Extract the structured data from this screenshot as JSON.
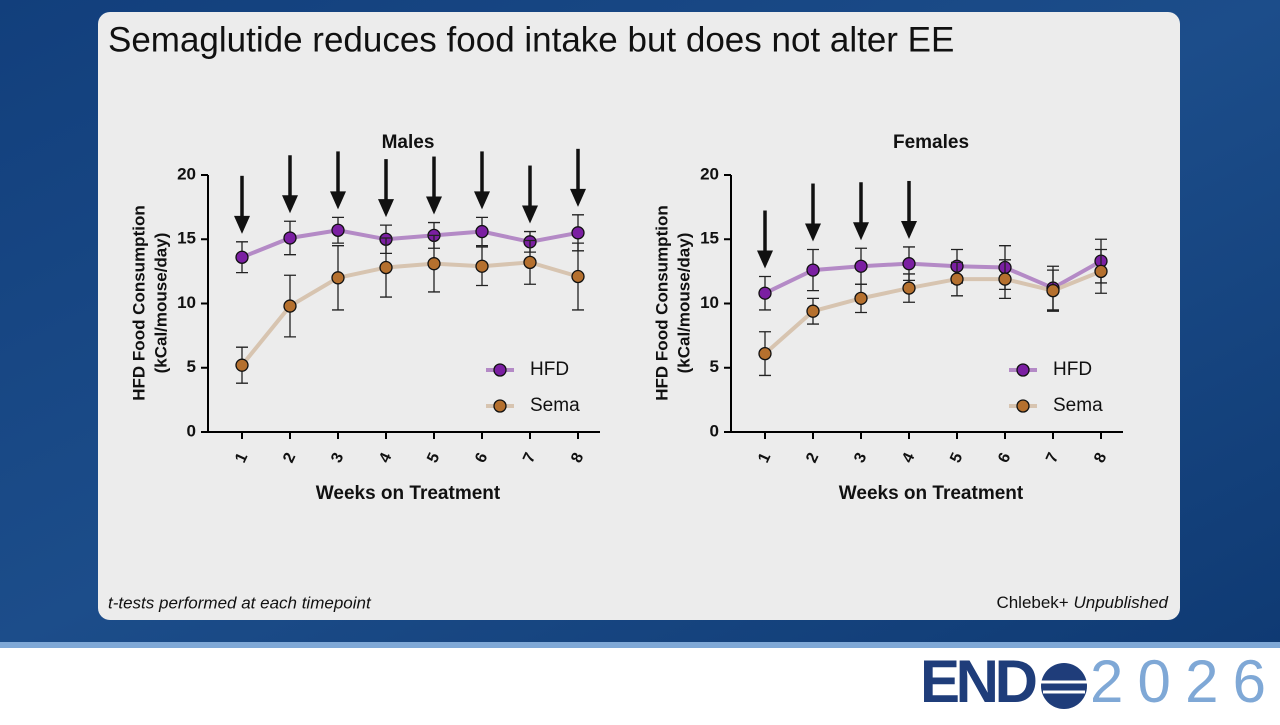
{
  "slide": {
    "title": "Semaglutide reduces food intake but does not alter EE",
    "footnote_left": "t-tests performed at each timepoint",
    "footnote_author": "Chlebek+",
    "footnote_status": "Unpublished"
  },
  "logo": {
    "left": "END",
    "right": "2026"
  },
  "chart_data": [
    {
      "type": "line",
      "title": "Males",
      "xlabel": "Weeks on Treatment",
      "ylabel": [
        "HFD Food Consumption",
        "(kCal/mouse/day)"
      ],
      "categories": [
        "1",
        "2",
        "3",
        "4",
        "5",
        "6",
        "7",
        "8"
      ],
      "significant": [
        true,
        true,
        true,
        true,
        true,
        true,
        true,
        true
      ],
      "ylim": [
        0,
        20
      ],
      "yticks": [
        0,
        5,
        10,
        15,
        20
      ],
      "legend": "lower right",
      "series": [
        {
          "name": "HFD",
          "color": "#7b1fa2",
          "line_color": "#b48ac6",
          "values": [
            13.6,
            15.1,
            15.7,
            15.0,
            15.3,
            15.6,
            14.8,
            15.5
          ],
          "errors": [
            1.2,
            1.3,
            1.0,
            1.1,
            1.0,
            1.1,
            0.8,
            1.4
          ]
        },
        {
          "name": "Sema",
          "color": "#b5702e",
          "line_color": "#d7c4b0",
          "values": [
            5.2,
            9.8,
            12.0,
            12.8,
            13.1,
            12.9,
            13.2,
            12.1
          ],
          "errors": [
            1.4,
            2.4,
            2.5,
            2.3,
            2.2,
            1.5,
            1.7,
            2.6
          ]
        }
      ]
    },
    {
      "type": "line",
      "title": "Females",
      "xlabel": "Weeks on Treatment",
      "ylabel": [
        "HFD Food Consumption",
        "(kCal/mouse/day)"
      ],
      "categories": [
        "1",
        "2",
        "3",
        "4",
        "5",
        "6",
        "7",
        "8"
      ],
      "significant": [
        true,
        true,
        true,
        true,
        false,
        false,
        false,
        false
      ],
      "ylim": [
        0,
        20
      ],
      "yticks": [
        0,
        5,
        10,
        15,
        20
      ],
      "legend": "lower right",
      "series": [
        {
          "name": "HFD",
          "color": "#7b1fa2",
          "line_color": "#b48ac6",
          "values": [
            10.8,
            12.6,
            12.9,
            13.1,
            12.9,
            12.8,
            11.2,
            13.3
          ],
          "errors": [
            1.3,
            1.6,
            1.4,
            1.3,
            1.3,
            1.7,
            1.7,
            1.7
          ]
        },
        {
          "name": "Sema",
          "color": "#b5702e",
          "line_color": "#d7c4b0",
          "values": [
            6.1,
            9.4,
            10.4,
            11.2,
            11.9,
            11.9,
            11.0,
            12.5
          ],
          "errors": [
            1.7,
            1.0,
            1.1,
            1.1,
            1.3,
            1.5,
            1.6,
            1.7
          ]
        }
      ]
    }
  ]
}
